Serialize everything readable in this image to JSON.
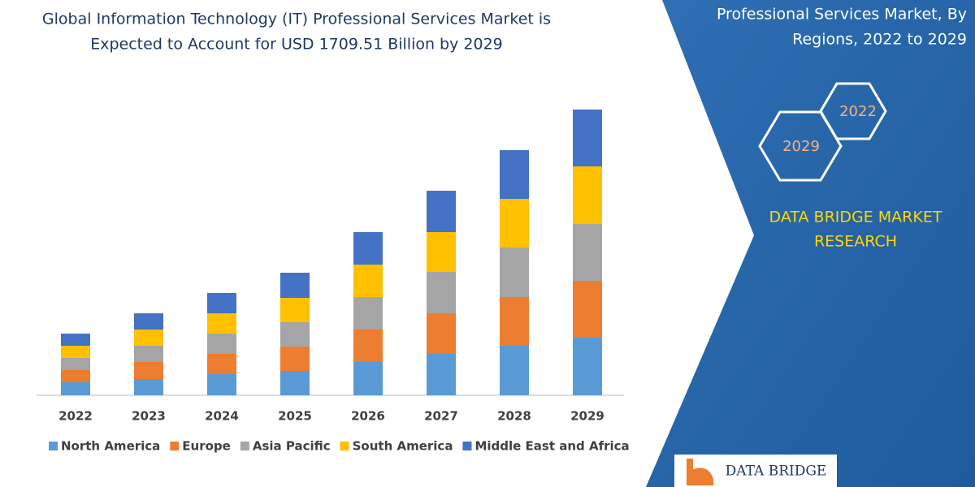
{
  "chart_data": {
    "type": "bar",
    "stacked": true,
    "title_lines": [
      "Global Information Technology (IT) Professional Services  Market is",
      "Expected to Account for USD 1709.51 Billion by 2029"
    ],
    "categories": [
      "2022",
      "2023",
      "2024",
      "2025",
      "2026",
      "2027",
      "2028",
      "2029"
    ],
    "series": [
      {
        "name": "North America",
        "color": "#5b9bd5",
        "values": [
          16,
          20,
          26,
          30,
          41,
          51,
          61,
          71
        ]
      },
      {
        "name": "Europe",
        "color": "#ed7d31",
        "values": [
          15,
          21,
          25,
          30,
          40,
          50,
          60,
          70
        ]
      },
      {
        "name": "Asia Pacific",
        "color": "#a5a5a5",
        "values": [
          15,
          20,
          25,
          30,
          40,
          51,
          61,
          70
        ]
      },
      {
        "name": "South America",
        "color": "#ffc000",
        "values": [
          15,
          20,
          25,
          30,
          40,
          49,
          60,
          71
        ]
      },
      {
        "name": "Middle East and Africa",
        "color": "#4472c4",
        "values": [
          15,
          20,
          25,
          31,
          40,
          51,
          60,
          70
        ]
      }
    ]
  },
  "side_panel": {
    "title_lines": [
      "Professional Services Market, By",
      "Regions, 2022 to 2029"
    ],
    "hexagons": [
      "2022",
      "2029"
    ],
    "brand_lines": [
      "DATA BRIDGE MARKET",
      "RESEARCH"
    ]
  },
  "logo": {
    "text": "DATA BRIDGE"
  }
}
